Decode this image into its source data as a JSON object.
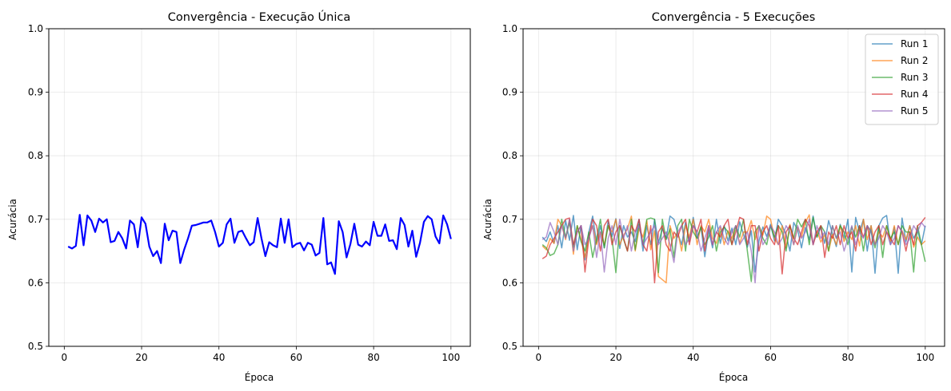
{
  "chart_data": [
    {
      "type": "line",
      "title": "Convergência - Execução Única",
      "xlabel": "Época",
      "ylabel": "Acurácia",
      "xlim": [
        -4.0,
        105.0
      ],
      "ylim": [
        0.5,
        1.0
      ],
      "xticks": [
        0,
        20,
        40,
        60,
        80,
        100
      ],
      "yticks": [
        0.5,
        0.6,
        0.7,
        0.8,
        0.9,
        1.0
      ],
      "grid": true,
      "legend": false,
      "x_start": 1,
      "series": [
        {
          "name": "",
          "color": "#0000ff",
          "values": [
            0.657,
            0.654,
            0.658,
            0.707,
            0.659,
            0.706,
            0.698,
            0.68,
            0.701,
            0.695,
            0.7,
            0.664,
            0.666,
            0.68,
            0.67,
            0.654,
            0.698,
            0.692,
            0.656,
            0.703,
            0.693,
            0.657,
            0.642,
            0.65,
            0.631,
            0.693,
            0.667,
            0.682,
            0.68,
            0.631,
            0.652,
            0.67,
            0.69,
            0.691,
            0.693,
            0.695,
            0.695,
            0.698,
            0.68,
            0.657,
            0.663,
            0.692,
            0.701,
            0.663,
            0.68,
            0.682,
            0.67,
            0.659,
            0.664,
            0.702,
            0.67,
            0.642,
            0.664,
            0.659,
            0.656,
            0.701,
            0.663,
            0.7,
            0.656,
            0.661,
            0.663,
            0.651,
            0.663,
            0.66,
            0.643,
            0.647,
            0.702,
            0.629,
            0.632,
            0.614,
            0.697,
            0.68,
            0.64,
            0.661,
            0.693,
            0.66,
            0.657,
            0.665,
            0.659,
            0.696,
            0.674,
            0.674,
            0.692,
            0.666,
            0.667,
            0.653,
            0.702,
            0.691,
            0.657,
            0.682,
            0.641,
            0.663,
            0.696,
            0.705,
            0.7,
            0.673,
            0.662,
            0.706,
            0.692,
            0.669
          ]
        }
      ]
    },
    {
      "type": "line",
      "title": "Convergência - 5 Execuções",
      "xlabel": "Época",
      "ylabel": "Acurácia",
      "xlim": [
        -4.0,
        105.0
      ],
      "ylim": [
        0.5,
        1.0
      ],
      "xticks": [
        0,
        20,
        40,
        60,
        80,
        100
      ],
      "yticks": [
        0.5,
        0.6,
        0.7,
        0.8,
        0.9,
        1.0
      ],
      "grid": true,
      "legend": "top-right",
      "x_start": 1,
      "series": [
        {
          "name": "Run 1",
          "color": "#1f77b4",
          "values": [
            0.672,
            0.665,
            0.68,
            0.662,
            0.69,
            0.655,
            0.698,
            0.667,
            0.706,
            0.652,
            0.69,
            0.636,
            0.68,
            0.705,
            0.662,
            0.69,
            0.655,
            0.698,
            0.673,
            0.701,
            0.654,
            0.69,
            0.672,
            0.68,
            0.665,
            0.7,
            0.65,
            0.69,
            0.66,
            0.7,
            0.663,
            0.685,
            0.67,
            0.705,
            0.7,
            0.678,
            0.66,
            0.695,
            0.665,
            0.703,
            0.67,
            0.688,
            0.641,
            0.683,
            0.655,
            0.7,
            0.662,
            0.69,
            0.666,
            0.686,
            0.66,
            0.696,
            0.676,
            0.656,
            0.682,
            0.617,
            0.666,
            0.688,
            0.673,
            0.692,
            0.666,
            0.7,
            0.69,
            0.676,
            0.65,
            0.695,
            0.683,
            0.655,
            0.687,
            0.668,
            0.705,
            0.672,
            0.688,
            0.662,
            0.698,
            0.677,
            0.657,
            0.692,
            0.67,
            0.7,
            0.617,
            0.703,
            0.68,
            0.7,
            0.65,
            0.69,
            0.615,
            0.69,
            0.702,
            0.706,
            0.66,
            0.688,
            0.615,
            0.702,
            0.665,
            0.69,
            0.67,
            0.682,
            0.66,
            0.69
          ]
        },
        {
          "name": "Run 2",
          "color": "#ff7f0e",
          "values": [
            0.658,
            0.652,
            0.67,
            0.662,
            0.7,
            0.69,
            0.668,
            0.7,
            0.645,
            0.69,
            0.668,
            0.64,
            0.672,
            0.69,
            0.66,
            0.68,
            0.66,
            0.69,
            0.68,
            0.7,
            0.66,
            0.675,
            0.685,
            0.705,
            0.65,
            0.685,
            0.672,
            0.698,
            0.652,
            0.682,
            0.61,
            0.605,
            0.6,
            0.69,
            0.67,
            0.68,
            0.65,
            0.69,
            0.672,
            0.7,
            0.66,
            0.69,
            0.68,
            0.7,
            0.67,
            0.662,
            0.688,
            0.66,
            0.682,
            0.67,
            0.69,
            0.662,
            0.68,
            0.68,
            0.698,
            0.668,
            0.69,
            0.675,
            0.705,
            0.7,
            0.67,
            0.66,
            0.69,
            0.655,
            0.692,
            0.66,
            0.688,
            0.672,
            0.695,
            0.707,
            0.66,
            0.682,
            0.664,
            0.676,
            0.65,
            0.676,
            0.66,
            0.69,
            0.665,
            0.68,
            0.668,
            0.69,
            0.658,
            0.7,
            0.668,
            0.69,
            0.66,
            0.68,
            0.672,
            0.69,
            0.665,
            0.69,
            0.66,
            0.682,
            0.668,
            0.69,
            0.656,
            0.672,
            0.66,
            0.666
          ]
        },
        {
          "name": "Run 3",
          "color": "#2ca02c",
          "values": [
            0.66,
            0.655,
            0.643,
            0.646,
            0.66,
            0.7,
            0.672,
            0.695,
            0.656,
            0.69,
            0.665,
            0.65,
            0.68,
            0.64,
            0.67,
            0.7,
            0.655,
            0.69,
            0.67,
            0.616,
            0.69,
            0.668,
            0.65,
            0.7,
            0.652,
            0.692,
            0.66,
            0.7,
            0.702,
            0.7,
            0.616,
            0.7,
            0.668,
            0.685,
            0.64,
            0.69,
            0.7,
            0.65,
            0.7,
            0.68,
            0.67,
            0.688,
            0.66,
            0.672,
            0.69,
            0.65,
            0.68,
            0.688,
            0.68,
            0.66,
            0.69,
            0.672,
            0.7,
            0.65,
            0.602,
            0.68,
            0.69,
            0.67,
            0.66,
            0.69,
            0.672,
            0.69,
            0.68,
            0.65,
            0.69,
            0.67,
            0.7,
            0.688,
            0.7,
            0.66,
            0.703,
            0.672,
            0.69,
            0.68,
            0.65,
            0.69,
            0.67,
            0.69,
            0.68,
            0.66,
            0.688,
            0.672,
            0.69,
            0.65,
            0.69,
            0.68,
            0.655,
            0.69,
            0.64,
            0.69,
            0.67,
            0.68,
            0.66,
            0.69,
            0.68,
            0.68,
            0.617,
            0.69,
            0.66,
            0.633
          ]
        },
        {
          "name": "Run 4",
          "color": "#d62728",
          "values": [
            0.638,
            0.642,
            0.66,
            0.67,
            0.68,
            0.69,
            0.7,
            0.702,
            0.66,
            0.68,
            0.69,
            0.617,
            0.67,
            0.7,
            0.69,
            0.65,
            0.69,
            0.7,
            0.66,
            0.68,
            0.69,
            0.67,
            0.65,
            0.69,
            0.68,
            0.7,
            0.66,
            0.65,
            0.69,
            0.6,
            0.68,
            0.69,
            0.66,
            0.65,
            0.68,
            0.672,
            0.69,
            0.7,
            0.66,
            0.69,
            0.68,
            0.7,
            0.65,
            0.69,
            0.66,
            0.68,
            0.672,
            0.69,
            0.7,
            0.66,
            0.68,
            0.703,
            0.7,
            0.66,
            0.69,
            0.69,
            0.65,
            0.68,
            0.69,
            0.67,
            0.66,
            0.69,
            0.614,
            0.68,
            0.69,
            0.67,
            0.66,
            0.68,
            0.7,
            0.69,
            0.66,
            0.68,
            0.69,
            0.64,
            0.68,
            0.67,
            0.69,
            0.66,
            0.69,
            0.67,
            0.68,
            0.65,
            0.69,
            0.672,
            0.69,
            0.66,
            0.68,
            0.69,
            0.66,
            0.68,
            0.67,
            0.66,
            0.69,
            0.68,
            0.65,
            0.68,
            0.66,
            0.69,
            0.695,
            0.703
          ]
        },
        {
          "name": "Run 5",
          "color": "#9467bd",
          "values": [
            0.668,
            0.672,
            0.695,
            0.68,
            0.66,
            0.69,
            0.67,
            0.7,
            0.65,
            0.68,
            0.69,
            0.66,
            0.67,
            0.69,
            0.64,
            0.68,
            0.617,
            0.67,
            0.69,
            0.66,
            0.7,
            0.67,
            0.69,
            0.65,
            0.68,
            0.69,
            0.66,
            0.67,
            0.68,
            0.69,
            0.66,
            0.67,
            0.68,
            0.66,
            0.632,
            0.68,
            0.69,
            0.66,
            0.67,
            0.69,
            0.68,
            0.65,
            0.67,
            0.69,
            0.66,
            0.68,
            0.69,
            0.67,
            0.66,
            0.68,
            0.69,
            0.66,
            0.67,
            0.68,
            0.65,
            0.6,
            0.69,
            0.66,
            0.67,
            0.69,
            0.68,
            0.66,
            0.67,
            0.69,
            0.68,
            0.66,
            0.69,
            0.67,
            0.68,
            0.7,
            0.66,
            0.69,
            0.67,
            0.68,
            0.66,
            0.69,
            0.67,
            0.68,
            0.65,
            0.67,
            0.69,
            0.66,
            0.68,
            0.67,
            0.69,
            0.68,
            0.66,
            0.67,
            0.69,
            0.68,
            0.66,
            0.67,
            0.69,
            0.68,
            0.66,
            0.67,
            0.69,
            0.68,
            0.695,
            0.687
          ]
        }
      ]
    }
  ]
}
